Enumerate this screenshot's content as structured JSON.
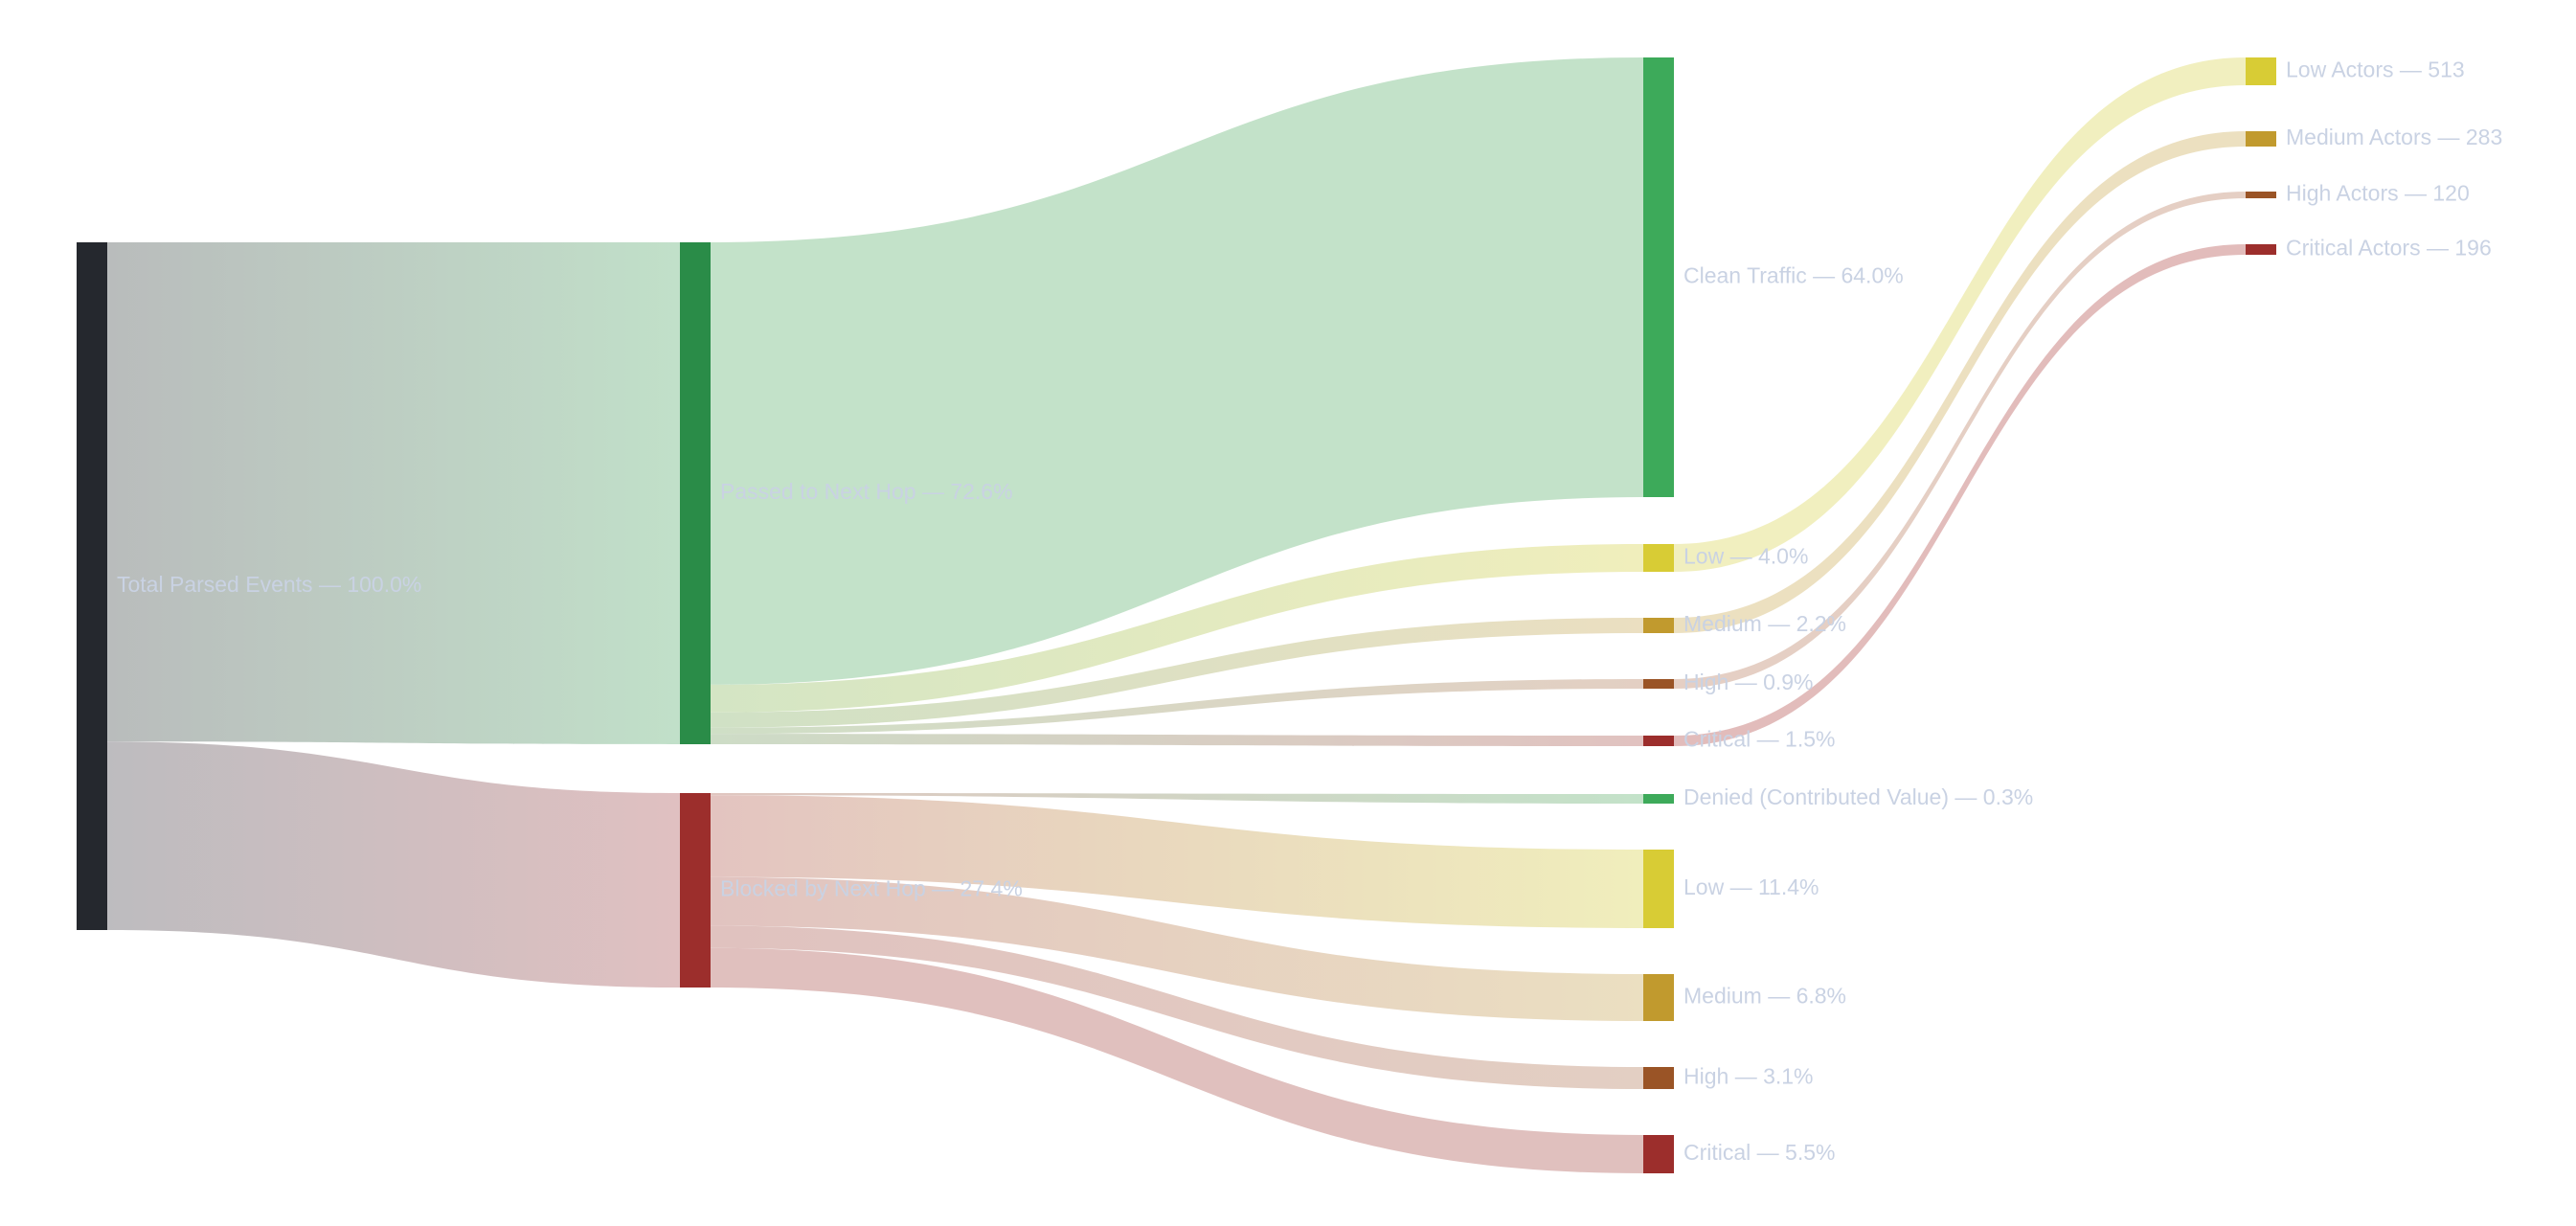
{
  "chart_data": {
    "type": "sankey",
    "title": "",
    "nodes": [
      {
        "id": "total",
        "label": "Total Parsed Events — 100.0%",
        "value": 100.0,
        "color": "#25282e"
      },
      {
        "id": "passed",
        "label": "Passed to Next Hop — 72.6%",
        "value": 72.6,
        "color": "#2a8c48"
      },
      {
        "id": "blocked",
        "label": "Blocked by Next Hop — 27.4%",
        "value": 27.4,
        "color": "#9c2e2c"
      },
      {
        "id": "clean",
        "label": "Clean Traffic — 64.0%",
        "value": 64.0,
        "color": "#3daa5a"
      },
      {
        "id": "p_low",
        "label": "Low — 4.0%",
        "value": 4.0,
        "color": "#d8cc35"
      },
      {
        "id": "p_med",
        "label": "Medium — 2.2%",
        "value": 2.2,
        "color": "#c19a2e"
      },
      {
        "id": "p_high",
        "label": "High — 0.9%",
        "value": 0.9,
        "color": "#9a5426"
      },
      {
        "id": "p_crit",
        "label": "Critical — 1.5%",
        "value": 1.5,
        "color": "#9c2e2c"
      },
      {
        "id": "denied",
        "label": "Denied (Contributed Value) — 0.3%",
        "value": 0.3,
        "color": "#3daa5a"
      },
      {
        "id": "b_low",
        "label": "Low — 11.4%",
        "value": 11.4,
        "color": "#d8cc35"
      },
      {
        "id": "b_med",
        "label": "Medium — 6.8%",
        "value": 6.8,
        "color": "#c19a2e"
      },
      {
        "id": "b_high",
        "label": "High — 3.1%",
        "value": 3.1,
        "color": "#9a5426"
      },
      {
        "id": "b_crit",
        "label": "Critical — 5.5%",
        "value": 5.5,
        "color": "#9c2e2c"
      },
      {
        "id": "a_low",
        "label": "Low Actors — 513",
        "value": 513,
        "color": "#d8cc35"
      },
      {
        "id": "a_med",
        "label": "Medium Actors — 283",
        "value": 283,
        "color": "#c19a2e"
      },
      {
        "id": "a_high",
        "label": "High Actors — 120",
        "value": 120,
        "color": "#9a5426"
      },
      {
        "id": "a_crit",
        "label": "Critical Actors — 196",
        "value": 196,
        "color": "#9c2e2c"
      }
    ],
    "links": [
      {
        "source": "total",
        "target": "passed",
        "value": 72.6
      },
      {
        "source": "total",
        "target": "blocked",
        "value": 27.4
      },
      {
        "source": "passed",
        "target": "clean",
        "value": 64.0
      },
      {
        "source": "passed",
        "target": "p_low",
        "value": 4.0
      },
      {
        "source": "passed",
        "target": "p_med",
        "value": 2.2
      },
      {
        "source": "passed",
        "target": "p_high",
        "value": 0.9
      },
      {
        "source": "passed",
        "target": "p_crit",
        "value": 1.5
      },
      {
        "source": "blocked",
        "target": "denied",
        "value": 0.3
      },
      {
        "source": "blocked",
        "target": "b_low",
        "value": 11.4
      },
      {
        "source": "blocked",
        "target": "b_med",
        "value": 6.8
      },
      {
        "source": "blocked",
        "target": "b_high",
        "value": 3.1
      },
      {
        "source": "blocked",
        "target": "b_crit",
        "value": 5.5
      },
      {
        "source": "p_low",
        "target": "a_low",
        "value": 4.0
      },
      {
        "source": "p_med",
        "target": "a_med",
        "value": 2.2
      },
      {
        "source": "p_high",
        "target": "a_high",
        "value": 0.9
      },
      {
        "source": "p_crit",
        "target": "a_crit",
        "value": 1.5
      }
    ]
  }
}
